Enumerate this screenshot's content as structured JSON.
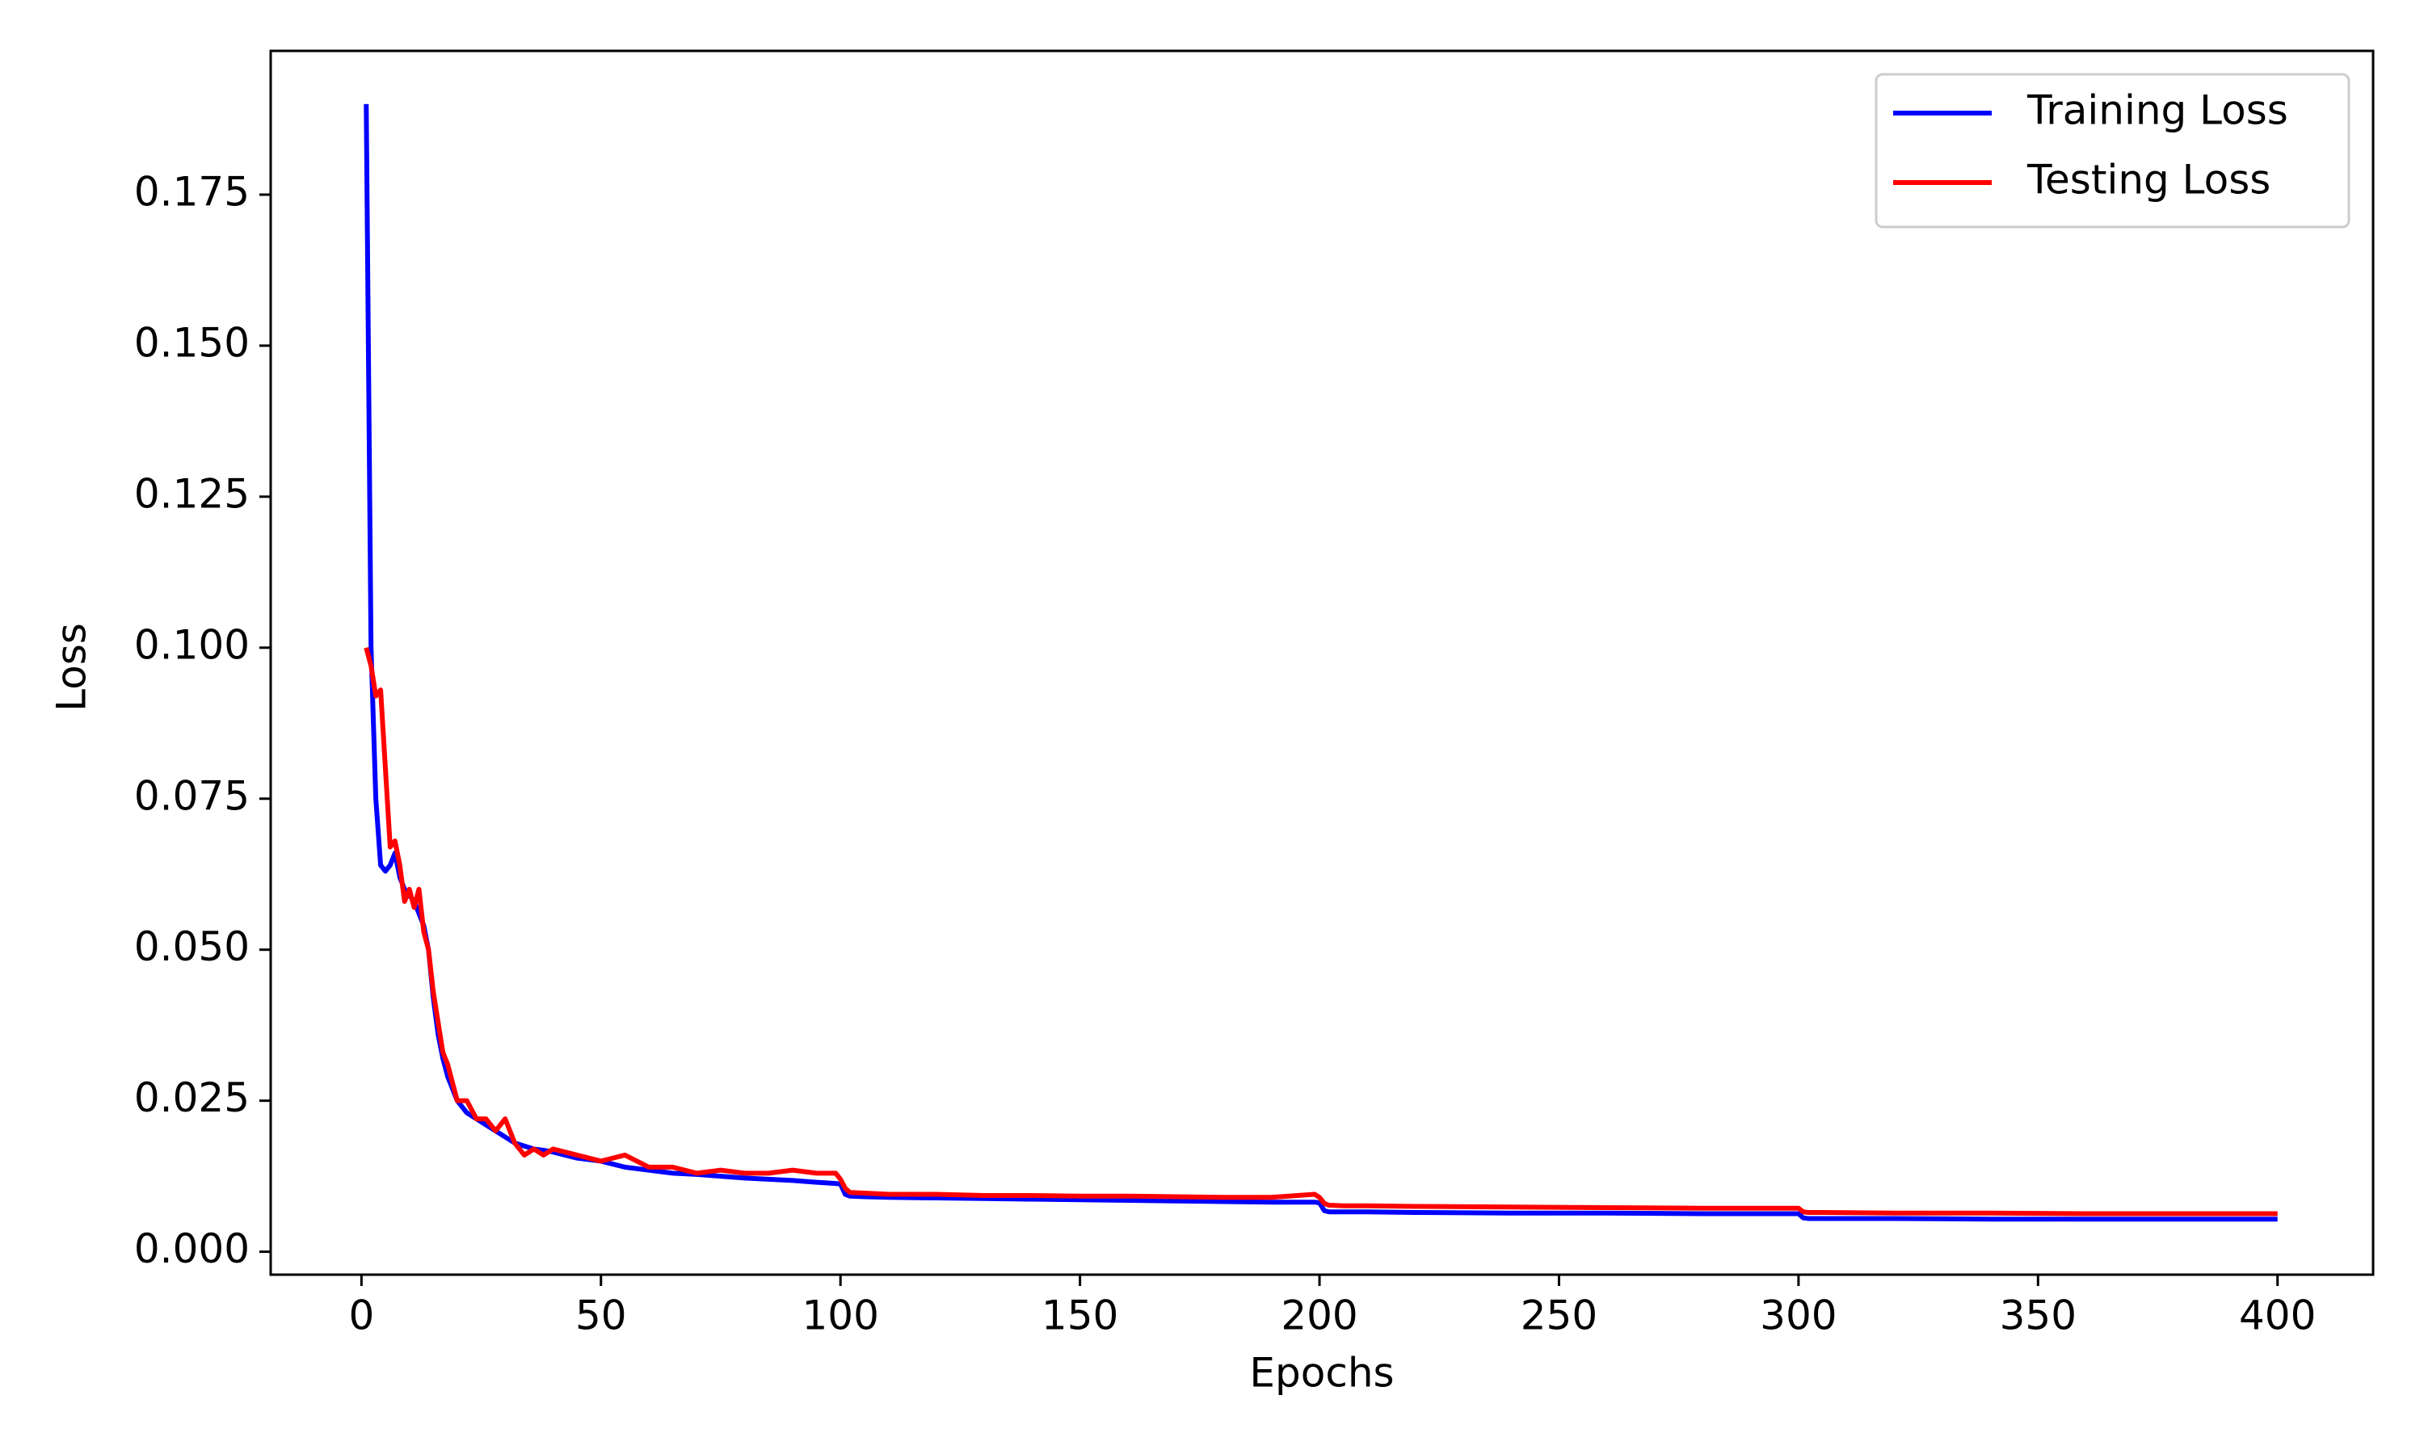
{
  "chart_data": {
    "type": "line",
    "x_label": "Epochs",
    "y_label": "Loss",
    "legend": "upper right",
    "grid": false,
    "x": [
      1,
      2,
      3,
      4,
      5,
      6,
      7,
      8,
      9,
      10,
      11,
      12,
      13,
      14,
      15,
      16,
      17,
      18,
      19,
      20,
      22,
      24,
      26,
      28,
      30,
      32,
      34,
      36,
      38,
      40,
      45,
      50,
      55,
      60,
      65,
      70,
      75,
      80,
      85,
      90,
      95,
      99,
      100,
      101,
      102,
      105,
      110,
      120,
      130,
      140,
      150,
      160,
      170,
      180,
      190,
      199,
      200,
      201,
      202,
      205,
      210,
      220,
      240,
      260,
      280,
      300,
      301,
      302,
      305,
      320,
      340,
      360,
      380,
      400
    ],
    "series": [
      {
        "name": "Training Loss",
        "color": "#0000ff",
        "values": [
          0.19,
          0.1,
          0.075,
          0.064,
          0.063,
          0.064,
          0.066,
          0.062,
          0.06,
          0.059,
          0.058,
          0.056,
          0.054,
          0.05,
          0.042,
          0.036,
          0.032,
          0.029,
          0.027,
          0.025,
          0.023,
          0.022,
          0.021,
          0.02,
          0.019,
          0.018,
          0.0175,
          0.017,
          0.0168,
          0.0165,
          0.0155,
          0.015,
          0.014,
          0.0135,
          0.013,
          0.0128,
          0.0125,
          0.0122,
          0.012,
          0.0118,
          0.0115,
          0.0113,
          0.0112,
          0.0095,
          0.0092,
          0.0091,
          0.009,
          0.0089,
          0.0088,
          0.0087,
          0.0086,
          0.0085,
          0.0084,
          0.0083,
          0.0082,
          0.0082,
          0.0081,
          0.0068,
          0.0066,
          0.0066,
          0.0066,
          0.0065,
          0.0064,
          0.0064,
          0.0063,
          0.0063,
          0.0056,
          0.0055,
          0.0055,
          0.0055,
          0.0054,
          0.0054,
          0.0054,
          0.0054
        ]
      },
      {
        "name": "Testing Loss",
        "color": "#ff0000",
        "values": [
          0.1,
          0.097,
          0.092,
          0.093,
          0.08,
          0.067,
          0.068,
          0.064,
          0.058,
          0.06,
          0.057,
          0.06,
          0.053,
          0.05,
          0.043,
          0.038,
          0.033,
          0.031,
          0.028,
          0.025,
          0.025,
          0.022,
          0.022,
          0.02,
          0.022,
          0.018,
          0.016,
          0.017,
          0.016,
          0.017,
          0.016,
          0.015,
          0.016,
          0.014,
          0.014,
          0.013,
          0.0135,
          0.013,
          0.013,
          0.0135,
          0.013,
          0.013,
          0.012,
          0.0105,
          0.0098,
          0.0097,
          0.0095,
          0.0095,
          0.0093,
          0.0093,
          0.0092,
          0.0092,
          0.0091,
          0.009,
          0.009,
          0.0095,
          0.009,
          0.008,
          0.0077,
          0.0076,
          0.0076,
          0.0075,
          0.0074,
          0.0073,
          0.0072,
          0.0072,
          0.0066,
          0.0065,
          0.0065,
          0.0064,
          0.0064,
          0.0063,
          0.0063,
          0.0063
        ]
      }
    ],
    "xlim": [
      -18.95,
      419.95
    ],
    "xticks": [
      0,
      50,
      100,
      150,
      200,
      250,
      300,
      350,
      400
    ],
    "ylim": [
      -0.0038,
      0.1988
    ],
    "yticks": [
      {
        "value": 0,
        "label": "0.000"
      },
      {
        "value": 0.025,
        "label": "0.025"
      },
      {
        "value": 0.05,
        "label": "0.050"
      },
      {
        "value": 0.075,
        "label": "0.075"
      },
      {
        "value": 0.1,
        "label": "0.100"
      },
      {
        "value": 0.125,
        "label": "0.125"
      },
      {
        "value": 0.15,
        "label": "0.150"
      },
      {
        "value": 0.175,
        "label": "0.175"
      }
    ]
  }
}
